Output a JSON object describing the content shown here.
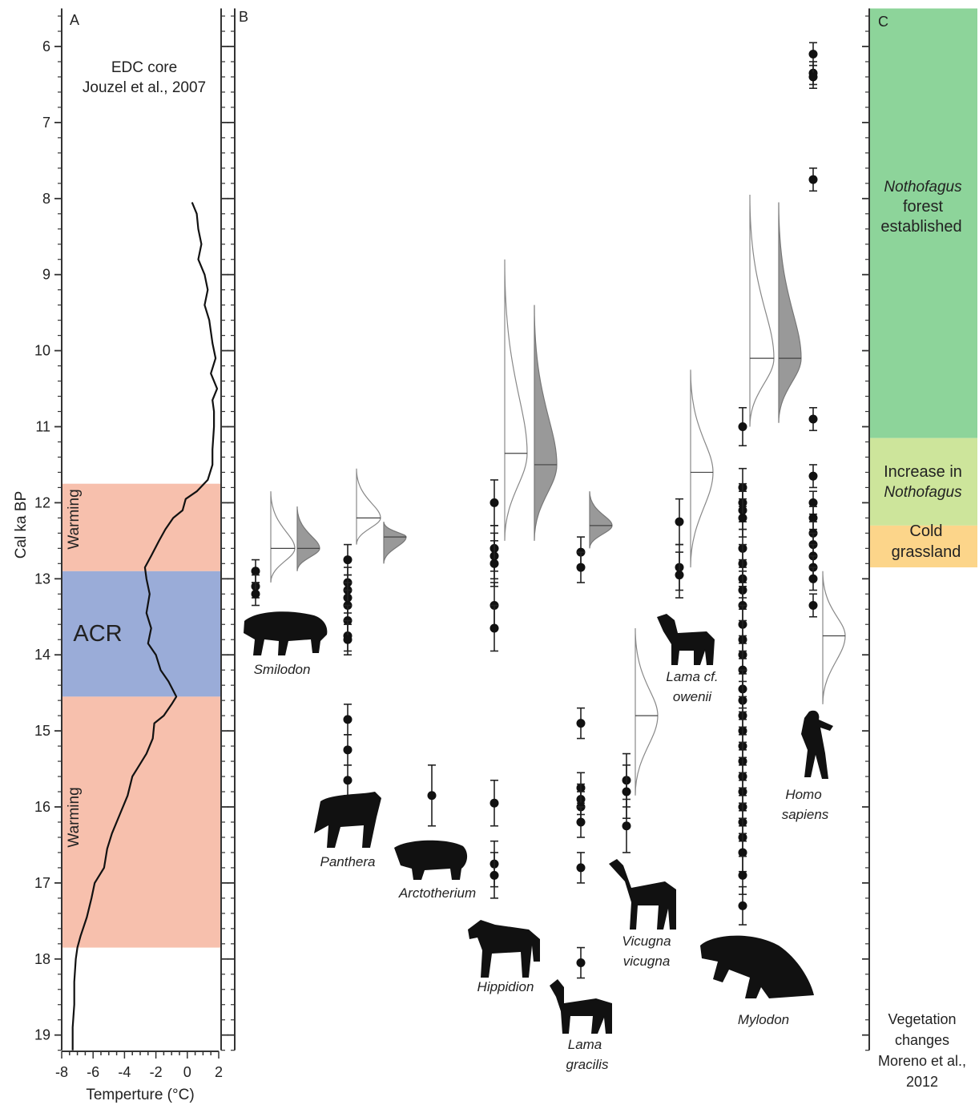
{
  "chart_data": [
    {
      "panel": "A",
      "type": "line",
      "panel_label": "A",
      "source_label_line1": "EDC core",
      "source_label_line2": "Jouzel et al., 2007",
      "ylabel": "Cal ka BP",
      "xlabel": "Temperture (°C)",
      "xlim": [
        -8,
        2
      ],
      "x_ticks": [
        -8,
        -6,
        -4,
        -2,
        0,
        2
      ],
      "ylim": [
        19.2,
        5.5
      ],
      "y_ticks": [
        6,
        7,
        8,
        9,
        10,
        11,
        12,
        13,
        14,
        15,
        16,
        17,
        18,
        19
      ],
      "bands": [
        {
          "label": "Warming",
          "from": 11.75,
          "to": 12.9,
          "color": "#f7c0ad"
        },
        {
          "label": "ACR",
          "from": 12.9,
          "to": 14.55,
          "color": "#9aacd8"
        },
        {
          "label": "Warming",
          "from": 14.55,
          "to": 17.85,
          "color": "#f7c0ad"
        }
      ],
      "series": [
        {
          "values": [
            [
              0.3,
              8.05
            ],
            [
              0.6,
              8.2
            ],
            [
              0.7,
              8.4
            ],
            [
              0.9,
              8.6
            ],
            [
              0.7,
              8.8
            ],
            [
              1.1,
              9.0
            ],
            [
              1.3,
              9.2
            ],
            [
              1.1,
              9.4
            ],
            [
              1.4,
              9.6
            ],
            [
              1.5,
              9.75
            ],
            [
              1.6,
              9.9
            ],
            [
              1.8,
              10.1
            ],
            [
              1.5,
              10.3
            ],
            [
              1.9,
              10.5
            ],
            [
              1.6,
              10.65
            ],
            [
              1.7,
              10.8
            ],
            [
              1.7,
              11.0
            ],
            [
              1.6,
              11.3
            ],
            [
              1.6,
              11.5
            ],
            [
              1.3,
              11.7
            ],
            [
              0.6,
              11.85
            ],
            [
              -0.1,
              11.95
            ],
            [
              -0.3,
              12.1
            ],
            [
              -0.9,
              12.2
            ],
            [
              -1.4,
              12.35
            ],
            [
              -1.8,
              12.5
            ],
            [
              -2.3,
              12.7
            ],
            [
              -2.7,
              12.85
            ],
            [
              -2.6,
              13.0
            ],
            [
              -2.4,
              13.2
            ],
            [
              -2.6,
              13.45
            ],
            [
              -2.3,
              13.65
            ],
            [
              -2.5,
              13.85
            ],
            [
              -2.0,
              14.0
            ],
            [
              -1.7,
              14.2
            ],
            [
              -1.2,
              14.35
            ],
            [
              -0.7,
              14.55
            ],
            [
              -1.0,
              14.65
            ],
            [
              -1.5,
              14.8
            ],
            [
              -2.1,
              14.9
            ],
            [
              -2.2,
              15.1
            ],
            [
              -2.6,
              15.3
            ],
            [
              -3.2,
              15.5
            ],
            [
              -3.5,
              15.6
            ],
            [
              -3.8,
              15.85
            ],
            [
              -4.3,
              16.1
            ],
            [
              -4.8,
              16.35
            ],
            [
              -5.1,
              16.55
            ],
            [
              -5.3,
              16.8
            ],
            [
              -5.9,
              17.0
            ],
            [
              -6.1,
              17.2
            ],
            [
              -6.4,
              17.45
            ],
            [
              -6.8,
              17.7
            ],
            [
              -7.0,
              17.85
            ],
            [
              -7.1,
              18.0
            ],
            [
              -7.2,
              18.3
            ],
            [
              -7.2,
              18.6
            ],
            [
              -7.3,
              18.9
            ],
            [
              -7.3,
              19.2
            ]
          ]
        }
      ]
    },
    {
      "panel": "B",
      "type": "scatter",
      "panel_label": "B",
      "ylim": [
        19.2,
        5.5
      ],
      "taxa": [
        {
          "name": "Smilodon",
          "dates": [
            12.9,
            13.1,
            13.2
          ],
          "err": 0.15,
          "density": [
            {
              "mode": 12.6,
              "top": 11.85,
              "bottom": 13.05,
              "width": 30
            },
            {
              "mode": 12.6,
              "top": 12.05,
              "bottom": 12.9,
              "width": 28,
              "filled": true
            }
          ]
        },
        {
          "name": "Panthera",
          "dates": [
            12.75,
            13.05,
            13.15,
            13.25,
            13.35,
            13.55,
            13.75,
            13.8,
            14.85,
            15.25,
            15.65
          ],
          "err": 0.2,
          "density": [
            {
              "mode": 12.2,
              "top": 11.55,
              "bottom": 12.55,
              "width": 30
            },
            {
              "mode": 12.45,
              "top": 12.25,
              "bottom": 12.8,
              "width": 28,
              "filled": true
            }
          ]
        },
        {
          "name": "Arctotherium",
          "dates": [
            15.85
          ],
          "err": 0.4,
          "density": []
        },
        {
          "name": "Hippidion",
          "dates": [
            12.0,
            12.6,
            12.7,
            12.8,
            13.35,
            13.65,
            15.95,
            16.75,
            16.9
          ],
          "err": 0.3,
          "density": [
            {
              "mode": 11.35,
              "top": 8.8,
              "bottom": 12.5,
              "width": 28
            },
            {
              "mode": 11.5,
              "top": 9.4,
              "bottom": 12.5,
              "width": 28,
              "filled": true
            }
          ]
        },
        {
          "name": "Lama gracilis",
          "dates": [
            12.65,
            12.85,
            14.9,
            15.75,
            15.9,
            16.0,
            16.2,
            16.8,
            18.05
          ],
          "err": 0.2,
          "density": [
            {
              "mode": 12.3,
              "top": 11.85,
              "bottom": 12.6,
              "width": 28,
              "filled": true
            }
          ]
        },
        {
          "name": "Vicugna vicugna",
          "dates": [
            15.65,
            15.8,
            16.25
          ],
          "err": 0.35,
          "density": [
            {
              "mode": 14.8,
              "top": 13.65,
              "bottom": 15.85,
              "width": 28
            }
          ]
        },
        {
          "name": "Lama cf. owenii",
          "dates": [
            12.25,
            12.85,
            12.95
          ],
          "err": 0.3,
          "density": [
            {
              "mode": 11.6,
              "top": 10.25,
              "bottom": 12.85,
              "width": 28
            }
          ]
        },
        {
          "name": "Mylodon",
          "dates": [
            11.0,
            11.8,
            12.0,
            12.1,
            12.2,
            12.6,
            12.8,
            13.0,
            13.15,
            13.35,
            13.6,
            13.8,
            14.0,
            14.2,
            14.45,
            14.6,
            14.8,
            15.0,
            15.2,
            15.4,
            15.6,
            15.8,
            16.0,
            16.2,
            16.4,
            16.6,
            16.9,
            17.3
          ],
          "err": 0.25,
          "density": [
            {
              "mode": 10.1,
              "top": 7.95,
              "bottom": 11.0,
              "width": 30
            },
            {
              "mode": 10.1,
              "top": 8.05,
              "bottom": 10.95,
              "width": 28,
              "filled": true
            }
          ]
        },
        {
          "name": "Homo sapiens",
          "dates": [
            6.1,
            6.35,
            6.4,
            7.75,
            10.9,
            11.65,
            12.0,
            12.2,
            12.4,
            12.55,
            12.7,
            12.85,
            13.0,
            13.35
          ],
          "err": 0.15,
          "density": [
            {
              "mode": 13.75,
              "top": 12.9,
              "bottom": 14.65,
              "width": 28
            }
          ]
        }
      ],
      "taxon_labels": {
        "smilodon": "Smilodon",
        "panthera": "Panthera",
        "arctotherium": "Arctotherium",
        "hippidion": "Hippidion",
        "lama_gracilis_1": "Lama",
        "lama_gracilis_2": "gracilis",
        "vicugna_1": "Vicugna",
        "vicugna_2": "vicugna",
        "lama_owenii_1": "Lama cf.",
        "lama_owenii_2": "owenii",
        "mylodon": "Mylodon",
        "homo_1": "Homo",
        "homo_2": "sapiens"
      }
    },
    {
      "panel": "C",
      "type": "bar",
      "panel_label": "C",
      "zones": [
        {
          "from": 5.5,
          "to": 11.15,
          "color": "#8dd49a",
          "lines": [
            "Nothofagus",
            "forest",
            "established"
          ],
          "italic": [
            true,
            false,
            false
          ]
        },
        {
          "from": 11.15,
          "to": 12.3,
          "color": "#cde59b",
          "lines": [
            "Increase in",
            "Nothofagus"
          ],
          "italic": [
            false,
            true
          ]
        },
        {
          "from": 12.3,
          "to": 12.85,
          "color": "#fcd58a",
          "lines": [
            "Cold",
            "grassland"
          ],
          "italic": [
            false,
            false
          ]
        }
      ],
      "source_label": [
        "Vegetation",
        "changes",
        "Moreno et al.,",
        "2012"
      ]
    }
  ],
  "icons": [
    "sabertooth-cat-icon",
    "jaguar-icon",
    "short-faced-bear-icon",
    "horse-icon",
    "guanaco-icon",
    "vicuna-icon",
    "llama-icon",
    "ground-sloth-icon",
    "human-icon"
  ]
}
